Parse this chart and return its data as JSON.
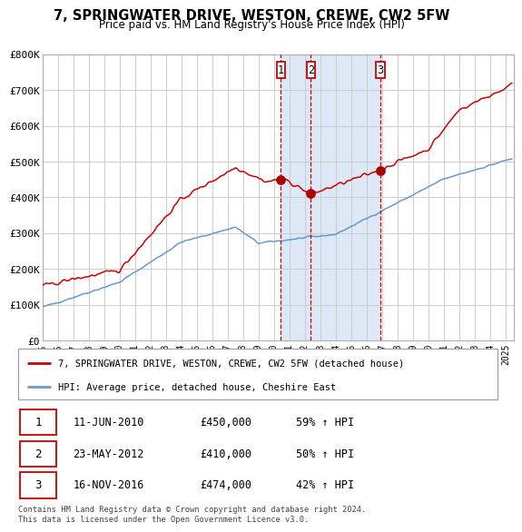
{
  "title": "7, SPRINGWATER DRIVE, WESTON, CREWE, CW2 5FW",
  "subtitle": "Price paid vs. HM Land Registry's House Price Index (HPI)",
  "legend_label_red": "7, SPRINGWATER DRIVE, WESTON, CREWE, CW2 5FW (detached house)",
  "legend_label_blue": "HPI: Average price, detached house, Cheshire East",
  "footer1": "Contains HM Land Registry data © Crown copyright and database right 2024.",
  "footer2": "This data is licensed under the Open Government Licence v3.0.",
  "transactions": [
    {
      "num": 1,
      "date": "11-JUN-2010",
      "price": 450000,
      "hpi_pct": 59,
      "direction": "↑"
    },
    {
      "num": 2,
      "date": "23-MAY-2012",
      "price": 410000,
      "hpi_pct": 50,
      "direction": "↑"
    },
    {
      "num": 3,
      "date": "16-NOV-2016",
      "price": 474000,
      "hpi_pct": 42,
      "direction": "↑"
    }
  ],
  "transaction_dates_decimal": [
    2010.44,
    2012.39,
    2016.88
  ],
  "transaction_prices": [
    450000,
    410000,
    474000
  ],
  "shaded_region": [
    2010.44,
    2016.88
  ],
  "ylim": [
    0,
    800000
  ],
  "xlim_start": 1995.0,
  "xlim_end": 2025.5,
  "yticks": [
    0,
    100000,
    200000,
    300000,
    400000,
    500000,
    600000,
    700000,
    800000
  ],
  "ytick_labels": [
    "£0",
    "£100K",
    "£200K",
    "£300K",
    "£400K",
    "£500K",
    "£600K",
    "£700K",
    "£800K"
  ],
  "xticks": [
    1995,
    1996,
    1997,
    1998,
    1999,
    2000,
    2001,
    2002,
    2003,
    2004,
    2005,
    2006,
    2007,
    2008,
    2009,
    2010,
    2011,
    2012,
    2013,
    2014,
    2015,
    2016,
    2017,
    2018,
    2019,
    2020,
    2021,
    2022,
    2023,
    2024,
    2025
  ],
  "red_color": "#cc0000",
  "blue_color": "#6699cc",
  "plot_bg_color": "#ffffff",
  "shaded_color": "#dce8f5",
  "grid_color": "#cccccc",
  "dot_color": "#aa0000"
}
